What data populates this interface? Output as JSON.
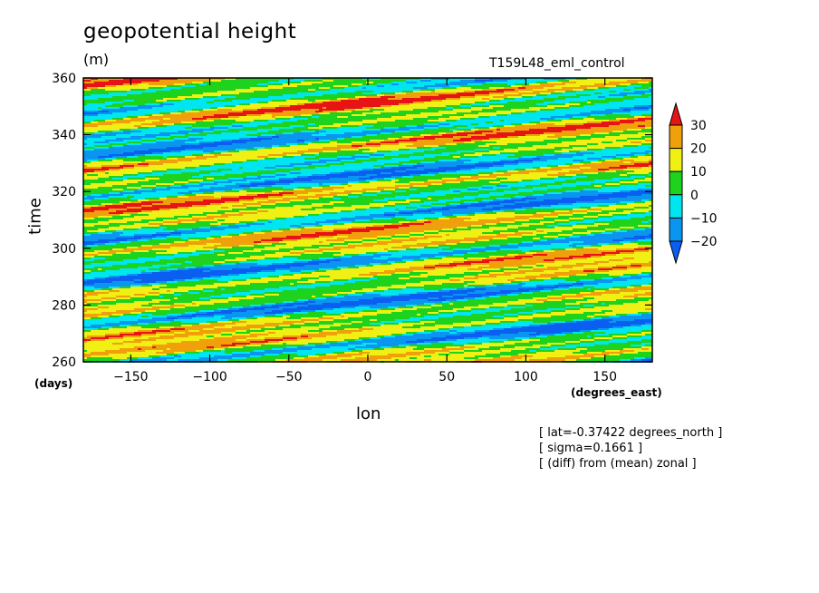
{
  "chart_data": {
    "type": "heatmap",
    "title": "geopotential height",
    "units": "(m)",
    "run_label": "T159L48_eml_control",
    "xlabel": "lon",
    "x_unit": "(degrees_east)",
    "ylabel": "time",
    "y_unit": "(days)",
    "xlim": [
      -180,
      180
    ],
    "ylim": [
      260,
      360
    ],
    "x_ticks": [
      -150,
      -100,
      -50,
      0,
      50,
      100,
      150
    ],
    "y_ticks": [
      260,
      280,
      300,
      320,
      340,
      360
    ],
    "colorbar": {
      "levels": [
        30,
        20,
        10,
        0,
        -10,
        -20
      ],
      "colors": [
        "#0a5ef0",
        "#0a96f0",
        "#00e6f0",
        "#1ed31e",
        "#f0f014",
        "#f0a00a",
        "#e61414"
      ],
      "extend": "both"
    },
    "annotations": [
      "[ lat=-0.37422 degrees_north ]",
      "[ sigma=0.1661 ]",
      "[ (diff) from (mean) zonal ]"
    ]
  }
}
